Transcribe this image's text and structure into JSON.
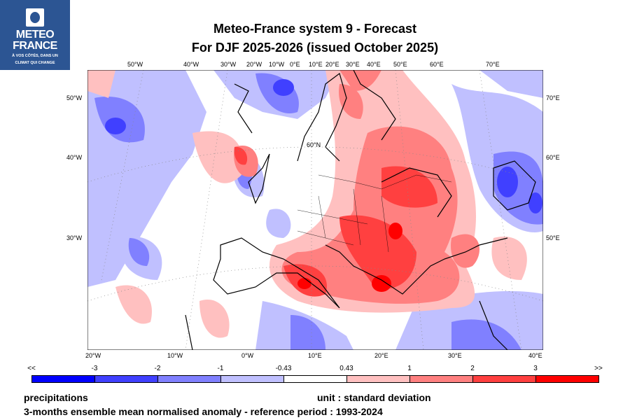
{
  "logo": {
    "line1": "METEO",
    "line2": "FRANCE",
    "tagline1": "À VOS CÔTÉS, DANS UN",
    "tagline2": "CLIMAT QUI CHANGE"
  },
  "title": {
    "line1": "Meteo-France system 9  -  Forecast",
    "line2": "For DJF 2025-2026      (issued October 2025)"
  },
  "map": {
    "top_labels": [
      "50°W",
      "40°W",
      "30°W",
      "20°W",
      "10°W",
      "0°E",
      "10°E",
      "20°E",
      "30°E",
      "40°E",
      "50°E",
      "60°E",
      "70°E"
    ],
    "bottom_labels": [
      "20°W",
      "10°W",
      "0°W",
      "10°E",
      "20°E",
      "30°E",
      "40°E"
    ],
    "left_labels": [
      "50°W",
      "40°W",
      "30°W"
    ],
    "right_labels": [
      "70°E",
      "60°E",
      "50°E"
    ],
    "inner_label": "60°N"
  },
  "colorbar": {
    "labels": [
      "<<",
      "-3",
      "-2",
      "-1",
      "-0.43",
      "0.43",
      "1",
      "2",
      "3",
      ">>"
    ],
    "colors": [
      "#0000ff",
      "#4040ff",
      "#8080ff",
      "#c0c0ff",
      "#ffffff",
      "#ffc0c0",
      "#ff8080",
      "#ff4040",
      "#ff0000"
    ]
  },
  "footer": {
    "variable": "precipitations",
    "unit": "unit : standard deviation",
    "description": "3-months ensemble mean normalised anomaly - reference period : 1993-2024"
  }
}
